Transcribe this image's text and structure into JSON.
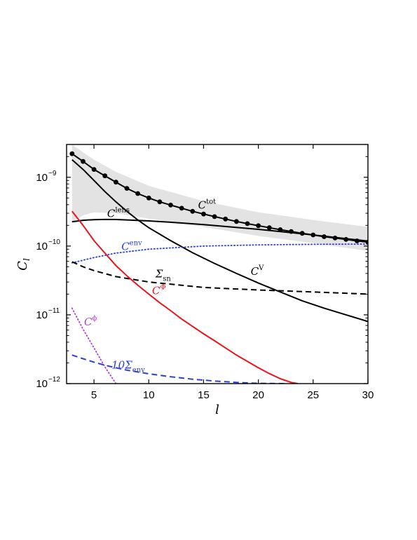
{
  "chart_data": {
    "type": "line",
    "x_label": "l",
    "y_label_base": "C",
    "y_label_sub": "l",
    "y_scale": "log",
    "xlim": [
      2.5,
      30
    ],
    "ylim": [
      1e-12,
      3e-09
    ],
    "x_ticks": [
      5,
      10,
      15,
      20,
      25,
      30
    ],
    "y_ticks": [
      {
        "value": 1e-12,
        "base": "10",
        "exp": "−12"
      },
      {
        "value": 1e-11,
        "base": "10",
        "exp": "−11"
      },
      {
        "value": 1e-10,
        "base": "10",
        "exp": "−10"
      },
      {
        "value": 1e-09,
        "base": "10",
        "exp": "−9"
      }
    ],
    "band": {
      "x": [
        3,
        4,
        5,
        7,
        10,
        15,
        20,
        25,
        30
      ],
      "upper": [
        3e-09,
        2.3e-09,
        1.8e-09,
        1.2e-09,
        7.5e-10,
        4.5e-10,
        3.1e-10,
        2.4e-10,
        1.9e-10
      ],
      "lower": [
        2.2e-10,
        2.8e-10,
        3.1e-10,
        3e-10,
        2.5e-10,
        1.9e-10,
        1.4e-10,
        1.1e-10,
        8.5e-11
      ],
      "color": "#e3e3e3"
    },
    "series": [
      {
        "id": "tot",
        "label_main": "C",
        "label_sup": "tot",
        "label_sub": "",
        "color": "#000000",
        "style": "solid",
        "markers": true,
        "x": [
          3,
          4,
          5,
          6,
          7,
          8,
          9,
          10,
          11,
          12,
          13,
          14,
          15,
          16,
          17,
          18,
          19,
          20,
          21,
          22,
          23,
          24,
          25,
          26,
          27,
          28,
          29,
          30
        ],
        "y": [
          2.2e-09,
          1.7e-09,
          1.3e-09,
          1.05e-09,
          8.5e-10,
          6.9e-10,
          5.8e-10,
          5e-10,
          4.4e-10,
          3.95e-10,
          3.55e-10,
          3.2e-10,
          2.92e-10,
          2.68e-10,
          2.47e-10,
          2.28e-10,
          2.12e-10,
          1.98e-10,
          1.85e-10,
          1.73e-10,
          1.63e-10,
          1.53e-10,
          1.45e-10,
          1.37e-10,
          1.31e-10,
          1.25e-10,
          1.19e-10,
          1.14e-10
        ],
        "label_pos": [
          14.5,
          3.5e-10
        ]
      },
      {
        "id": "lens",
        "label_main": "C",
        "label_sup": "lens",
        "label_sub": "",
        "color": "#000000",
        "style": "solid",
        "markers": false,
        "x": [
          3,
          4,
          5,
          6,
          7,
          8,
          10,
          12,
          15,
          20,
          25,
          30
        ],
        "y": [
          2.25e-10,
          2.37e-10,
          2.42e-10,
          2.44e-10,
          2.43e-10,
          2.4e-10,
          2.32e-10,
          2.22e-10,
          2.05e-10,
          1.75e-10,
          1.45e-10,
          1.18e-10
        ],
        "label_pos": [
          6.2,
          2.65e-10
        ]
      },
      {
        "id": "V",
        "label_main": "C",
        "label_sup": "V",
        "label_sub": "",
        "color": "#000000",
        "style": "solid",
        "markers": false,
        "x": [
          3,
          4,
          5,
          6,
          7,
          8,
          9,
          10,
          12,
          14,
          16,
          18,
          20,
          22,
          24,
          26,
          28,
          30
        ],
        "y": [
          1.8e-09,
          1.3e-09,
          9e-10,
          6.2e-10,
          4.4e-10,
          3.2e-10,
          2.4e-10,
          1.85e-10,
          1.2e-10,
          8e-11,
          5.6e-11,
          4e-11,
          2.9e-11,
          2.15e-11,
          1.6e-11,
          1.25e-11,
          1e-11,
          8e-12
        ],
        "label_pos": [
          19.3,
          3.8e-11
        ]
      },
      {
        "id": "env",
        "label_main": "C",
        "label_sup": "env",
        "label_sub": "",
        "color": "#2a3fd6",
        "style": "dotted",
        "markers": false,
        "x": [
          3,
          5,
          7,
          10,
          15,
          20,
          25,
          30
        ],
        "y": [
          5.7e-11,
          6.8e-11,
          7.9e-11,
          9e-11,
          1e-10,
          1.04e-10,
          1.06e-10,
          1.07e-10
        ],
        "label_pos": [
          7.5,
          8.8e-11
        ]
      },
      {
        "id": "sn",
        "label_main": "Σ",
        "label_sup": "",
        "label_sub": "sn",
        "color": "#000000",
        "style": "dashed",
        "markers": false,
        "x": [
          3,
          4,
          5,
          7,
          10,
          15,
          20,
          25,
          30
        ],
        "y": [
          5.9e-11,
          5e-11,
          4.4e-11,
          3.6e-11,
          3e-11,
          2.5e-11,
          2.3e-11,
          2.15e-11,
          2e-11
        ],
        "label_pos": [
          10.6,
          3.5e-11
        ]
      },
      {
        "id": "Phi",
        "label_main": "C",
        "label_sup": "Φ",
        "label_sub": "",
        "color": "#e8141b",
        "style": "solid",
        "markers": false,
        "x": [
          3,
          4,
          5,
          6,
          7,
          8,
          9,
          10,
          11,
          12,
          13,
          14,
          15,
          16,
          17,
          18,
          19,
          20,
          21,
          22,
          23,
          23.6
        ],
        "y": [
          3.2e-10,
          2e-10,
          1.2e-10,
          7.9e-11,
          5.2e-11,
          3.7e-11,
          2.7e-11,
          2e-11,
          1.5e-11,
          1.15e-11,
          8.7e-12,
          6.8e-12,
          5.3e-12,
          4.2e-12,
          3.3e-12,
          2.6e-12,
          2.1e-12,
          1.7e-12,
          1.4e-12,
          1.18e-12,
          1.04e-12,
          1e-12
        ],
        "label_pos": [
          10.3,
          2e-11
        ]
      },
      {
        "id": "phi",
        "label_main": "C",
        "label_sup": "ϕ",
        "label_sub": "",
        "color": "#b23fd1",
        "style": "dotted",
        "markers": false,
        "x": [
          3,
          4,
          5,
          6,
          7
        ],
        "y": [
          1.25e-11,
          6.2e-12,
          3.3e-12,
          1.75e-12,
          1e-12
        ],
        "label_pos": [
          4.1,
          7e-12
        ]
      },
      {
        "id": "10env",
        "label_main": "10Σ",
        "label_sup": "",
        "label_sub": "env",
        "color": "#2a3fd6",
        "style": "dashed",
        "markers": false,
        "x": [
          3,
          4,
          5,
          6,
          7,
          8,
          10,
          12,
          14,
          16,
          18,
          20,
          22.5
        ],
        "y": [
          2.6e-12,
          2.3e-12,
          2.05e-12,
          1.85e-12,
          1.7e-12,
          1.57e-12,
          1.39e-12,
          1.26e-12,
          1.16e-12,
          1.09e-12,
          1.04e-12,
          1.01e-12,
          1e-12
        ],
        "label_pos": [
          6.6,
          1.65e-12
        ]
      }
    ]
  }
}
